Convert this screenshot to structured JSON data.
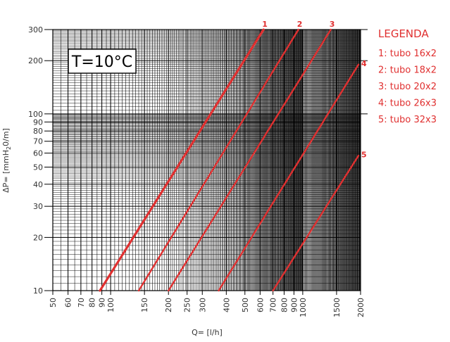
{
  "chart_data": {
    "type": "line",
    "title": "",
    "annotation": "T=10°C",
    "xlabel": "Q= [l/h]",
    "ylabel_main": "ΔP= [mmH",
    "ylabel_sub": "2",
    "ylabel_end": "0/m]",
    "x_scale": "log",
    "y_scale": "log",
    "xlim": [
      50,
      2000
    ],
    "ylim": [
      10,
      300
    ],
    "x_ticks": [
      50,
      60,
      70,
      80,
      90,
      100,
      150,
      200,
      250,
      300,
      400,
      500,
      600,
      700,
      800,
      900,
      1000,
      1500,
      2000
    ],
    "x_tick_labels": [
      "50",
      "60",
      "70",
      "80",
      "90",
      "100",
      "150",
      "200",
      "250",
      "300",
      "400",
      "500",
      "600",
      "700",
      "800",
      "900",
      "1000",
      "1500",
      "2000"
    ],
    "y_ticks": [
      10,
      20,
      30,
      40,
      50,
      60,
      70,
      80,
      90,
      100,
      200,
      300
    ],
    "y_tick_labels": [
      "10",
      "20",
      "30",
      "40",
      "50",
      "60",
      "70",
      "80",
      "90",
      "100",
      "200",
      "300"
    ],
    "grid": true,
    "legend_position": "right",
    "legend_title": "LEGENDA",
    "series_color": "#e03030",
    "series": [
      {
        "label": "1",
        "legend": "1: tubo 16x2",
        "x": [
          88,
          625
        ],
        "y": [
          10,
          300
        ]
      },
      {
        "label": "2",
        "legend": "2: tubo 18x2",
        "x": [
          140,
          950
        ],
        "y": [
          10,
          300
        ]
      },
      {
        "label": "3",
        "legend": "3: tubo 20x2",
        "x": [
          200,
          1400
        ],
        "y": [
          10,
          300
        ]
      },
      {
        "label": "4",
        "legend": "4: tubo 26x3",
        "x": [
          365,
          1950
        ],
        "y": [
          10,
          190
        ]
      },
      {
        "label": "5",
        "legend": "5: tubo 32x3",
        "x": [
          700,
          1950
        ],
        "y": [
          10,
          58
        ]
      }
    ]
  }
}
